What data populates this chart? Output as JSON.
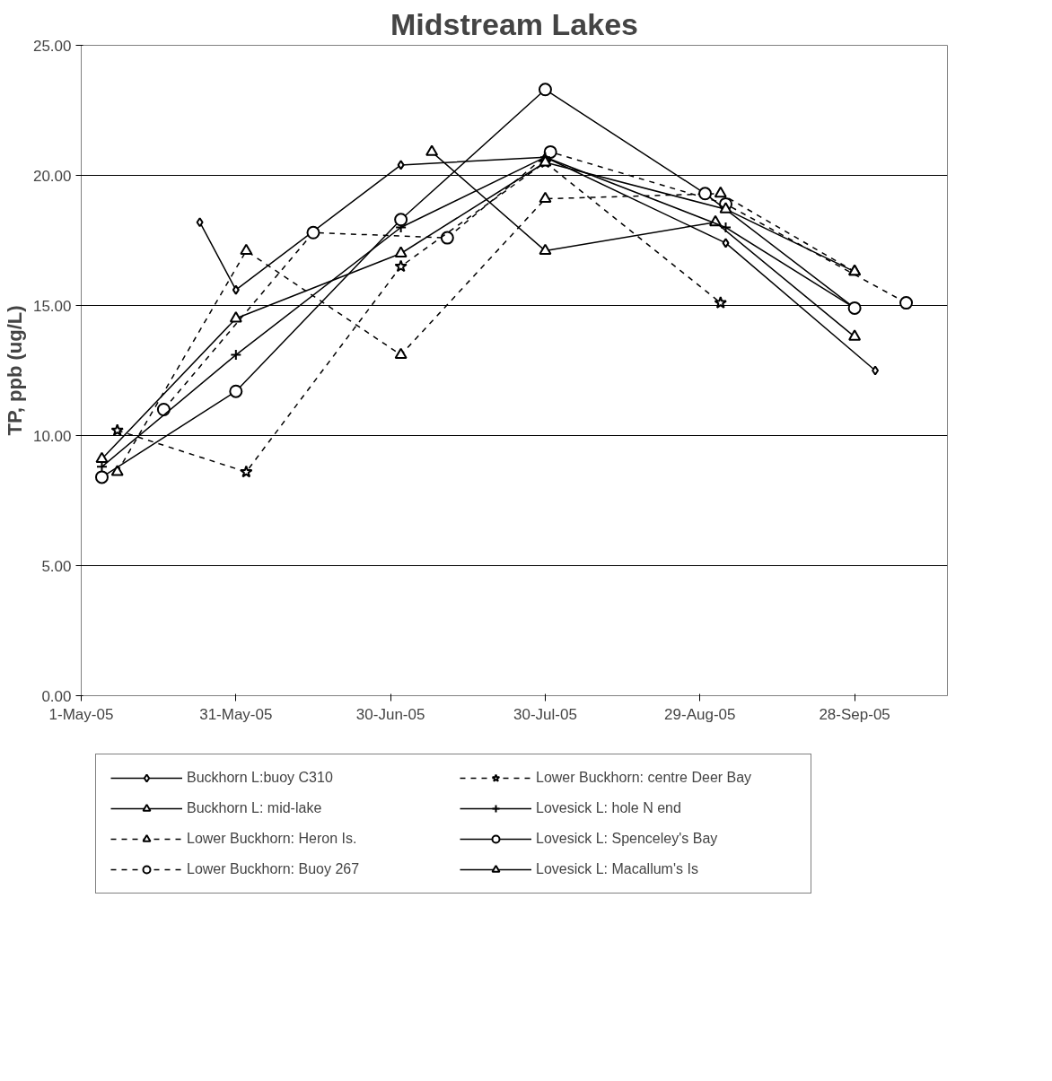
{
  "chart_data": {
    "type": "line",
    "title": "Midstream Lakes",
    "ylabel": "TP, ppb (ug/L)",
    "xlim": [
      "2005-05-01",
      "2005-10-16"
    ],
    "xticks": [
      {
        "value": "2005-05-01",
        "label": "1-May-05"
      },
      {
        "value": "2005-05-31",
        "label": "31-May-05"
      },
      {
        "value": "2005-06-30",
        "label": "30-Jun-05"
      },
      {
        "value": "2005-07-30",
        "label": "30-Jul-05"
      },
      {
        "value": "2005-08-29",
        "label": "29-Aug-05"
      },
      {
        "value": "2005-09-28",
        "label": "28-Sep-05"
      }
    ],
    "ylim": [
      0,
      25
    ],
    "yticks": [
      {
        "value": 0,
        "label": "0.00"
      },
      {
        "value": 5,
        "label": "5.00"
      },
      {
        "value": 10,
        "label": "10.00"
      },
      {
        "value": 15,
        "label": "15.00"
      },
      {
        "value": 20,
        "label": "20.00"
      },
      {
        "value": 25,
        "label": "25.00"
      }
    ],
    "grid": "y",
    "legend": "bottom",
    "series": [
      {
        "name": "Buckhorn L:buoy C310",
        "color": "#000000",
        "marker": "diamond",
        "line_style": "solid",
        "x": [
          "2005-05-24",
          "2005-05-31",
          "2005-07-02",
          "2005-07-30",
          "2005-09-03",
          "2005-10-02"
        ],
        "values": [
          18.2,
          15.6,
          20.4,
          20.7,
          17.4,
          12.5
        ]
      },
      {
        "name": "Buckhorn L: mid-lake",
        "color": "#000000",
        "marker": "triangle",
        "line_style": "solid",
        "x": [
          "2005-07-08",
          "2005-07-30",
          "2005-09-01",
          "2005-09-28"
        ],
        "values": [
          20.9,
          17.1,
          18.2,
          13.8
        ]
      },
      {
        "name": "Lower Buckhorn: Heron Is.",
        "color": "#000000",
        "marker": "triangle",
        "line_style": "dashed",
        "x": [
          "2005-05-08",
          "2005-06-02",
          "2005-07-02",
          "2005-07-30",
          "2005-09-02",
          "2005-09-28"
        ],
        "values": [
          8.6,
          17.1,
          13.1,
          19.1,
          19.3,
          16.3
        ]
      },
      {
        "name": "Lower Buckhorn: Buoy 267",
        "color": "#000000",
        "marker": "circle",
        "line_style": "dashed",
        "x": [
          "2005-05-17",
          "2005-06-15",
          "2005-07-11",
          "2005-07-31",
          "2005-09-03",
          "2005-10-08"
        ],
        "values": [
          11.0,
          17.8,
          17.6,
          20.9,
          18.9,
          15.1
        ]
      },
      {
        "name": "Lower Buckhorn: centre Deer Bay",
        "color": "#000000",
        "marker": "star",
        "line_style": "dashed",
        "x": [
          "2005-05-08",
          "2005-06-02",
          "2005-07-02",
          "2005-07-30",
          "2005-09-02"
        ],
        "values": [
          10.2,
          8.6,
          16.5,
          20.5,
          15.1
        ]
      },
      {
        "name": "Lovesick L: hole N end",
        "color": "#000000",
        "marker": "cross",
        "line_style": "solid",
        "x": [
          "2005-05-05",
          "2005-05-31",
          "2005-07-02",
          "2005-07-30",
          "2005-09-03",
          "2005-09-28"
        ],
        "values": [
          8.8,
          13.1,
          18.0,
          20.7,
          18.0,
          14.9
        ]
      },
      {
        "name": "Lovesick L: Spenceley's Bay",
        "color": "#000000",
        "marker": "circle",
        "line_style": "solid",
        "x": [
          "2005-05-05",
          "2005-05-31",
          "2005-07-02",
          "2005-07-30",
          "2005-08-30",
          "2005-09-28"
        ],
        "values": [
          8.4,
          11.7,
          18.3,
          23.3,
          19.3,
          14.9
        ]
      },
      {
        "name": "Lovesick L: Macallum's Is",
        "color": "#000000",
        "marker": "triangle",
        "line_style": "solid",
        "x": [
          "2005-05-05",
          "2005-05-31",
          "2005-07-02",
          "2005-07-30",
          "2005-09-03",
          "2005-09-28"
        ],
        "values": [
          9.1,
          14.5,
          17.0,
          20.5,
          18.7,
          16.3
        ]
      }
    ]
  }
}
